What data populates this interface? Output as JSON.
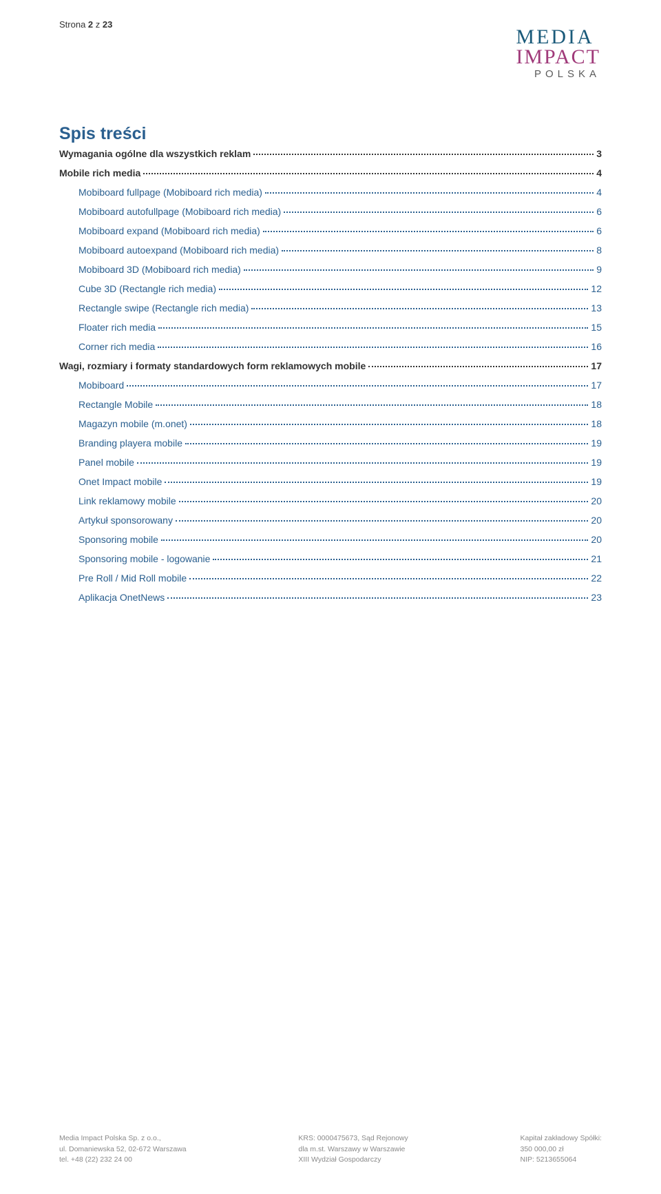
{
  "pageHeader": {
    "label": "Strona ",
    "current": "2",
    "sep": " z ",
    "total": "23"
  },
  "logo": {
    "line1": "MEDIA",
    "line2": "IMPACT",
    "line3": "POLSKA"
  },
  "tocTitle": "Spis treści",
  "toc": [
    {
      "level": "h1",
      "label": "Wymagania ogólne dla wszystkich reklam",
      "page": "3"
    },
    {
      "level": "h1",
      "label": "Mobile rich media",
      "page": "4"
    },
    {
      "level": "h2",
      "label": "Mobiboard fullpage (Mobiboard rich media)",
      "page": "4"
    },
    {
      "level": "h2",
      "label": "Mobiboard autofullpage (Mobiboard rich media)",
      "page": "6"
    },
    {
      "level": "h2",
      "label": "Mobiboard expand (Mobiboard rich media)",
      "page": "6"
    },
    {
      "level": "h2",
      "label": "Mobiboard autoexpand (Mobiboard rich media)",
      "page": "8"
    },
    {
      "level": "h2",
      "label": "Mobiboard 3D (Mobiboard rich media)",
      "page": "9"
    },
    {
      "level": "h2",
      "label": "Cube 3D (Rectangle rich media)",
      "page": "12"
    },
    {
      "level": "h2",
      "label": "Rectangle swipe (Rectangle rich media)",
      "page": "13"
    },
    {
      "level": "h2",
      "label": "Floater rich media",
      "page": "15"
    },
    {
      "level": "h2",
      "label": "Corner rich media",
      "page": "16"
    },
    {
      "level": "h1",
      "label": "Wagi, rozmiary i formaty standardowych form reklamowych mobile",
      "page": "17"
    },
    {
      "level": "h2",
      "label": "Mobiboard",
      "page": "17"
    },
    {
      "level": "h2",
      "label": "Rectangle Mobile",
      "page": "18"
    },
    {
      "level": "h2",
      "label": "Magazyn mobile (m.onet)",
      "page": "18"
    },
    {
      "level": "h2",
      "label": "Branding playera mobile",
      "page": "19"
    },
    {
      "level": "h2",
      "label": "Panel mobile",
      "page": "19"
    },
    {
      "level": "h2",
      "label": "Onet Impact mobile",
      "page": "19"
    },
    {
      "level": "h2",
      "label": "Link reklamowy mobile",
      "page": "20"
    },
    {
      "level": "h2",
      "label": "Artykuł sponsorowany",
      "page": "20"
    },
    {
      "level": "h2",
      "label": "Sponsoring mobile",
      "page": "20"
    },
    {
      "level": "h2",
      "label": "Sponsoring mobile - logowanie",
      "page": "21"
    },
    {
      "level": "h2",
      "label": "Pre Roll / Mid Roll mobile",
      "page": "22"
    },
    {
      "level": "h2",
      "label": "Aplikacja OnetNews",
      "page": "23"
    }
  ],
  "footer": {
    "col1": [
      "Media Impact Polska Sp. z o.o.,",
      "ul. Domaniewska 52, 02-672 Warszawa",
      "tel. +48 (22) 232 24 00"
    ],
    "col2": [
      "KRS: 0000475673, Sąd Rejonowy",
      "dla m.st. Warszawy w Warszawie",
      "XIII Wydział Gospodarczy"
    ],
    "col3": [
      "Kapitał zakładowy Spółki:",
      "350 000,00 zł",
      "NIP: 5213655064"
    ]
  }
}
